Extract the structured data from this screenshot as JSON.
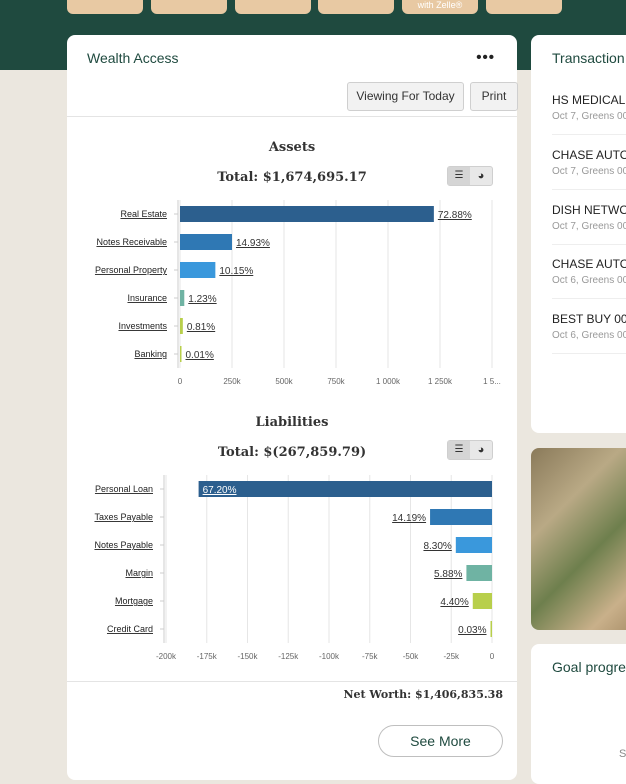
{
  "banner": {
    "quick_actions": [
      "",
      "",
      "",
      "",
      "with Zelle®",
      ""
    ]
  },
  "wealth": {
    "title": "Wealth Access",
    "more_label": "•••",
    "viewing_label": "Viewing For Today",
    "print_label": "Print",
    "assets": {
      "title": "Assets",
      "total": "Total: $1,674,695.17"
    },
    "liabilities": {
      "title": "Liabilities",
      "total": "Total: $(267,859.79)"
    },
    "toggle": {
      "bar_icon": "bar-chart-icon",
      "pie_icon": "pie-chart-icon",
      "bar_glyph": "☰",
      "pie_glyph": "◕"
    },
    "net_worth": "Net Worth: $1,406,835.38",
    "see_more": "See More"
  },
  "chart_data": [
    {
      "type": "bar",
      "orientation": "horizontal",
      "title": "Assets",
      "subtitle": "Total: $1,674,695.17",
      "categories": [
        "Real Estate",
        "Notes Receivable",
        "Personal Property",
        "Insurance",
        "Investments",
        "Banking"
      ],
      "percent_labels": [
        "72.88%",
        "14.93%",
        "10.15%",
        "1.23%",
        "0.81%",
        "0.01%"
      ],
      "values": [
        1220500,
        250000,
        170000,
        20600,
        13600,
        200
      ],
      "colors": [
        "#2c5f8e",
        "#2f78b4",
        "#3a98dc",
        "#6fb3a3",
        "#b8cf4b",
        "#b8cf4b"
      ],
      "xticks": [
        "0",
        "250k",
        "500k",
        "750k",
        "1 000k",
        "1 250k",
        "1 5..."
      ],
      "xlim": [
        0,
        1500000
      ],
      "grid": true
    },
    {
      "type": "bar",
      "orientation": "horizontal",
      "title": "Liabilities",
      "subtitle": "Total: $(267,859.79)",
      "categories": [
        "Personal Loan",
        "Taxes Payable",
        "Notes Payable",
        "Margin",
        "Mortgage",
        "Credit Card"
      ],
      "percent_labels": [
        "67.20%",
        "14.19%",
        "8.30%",
        "5.88%",
        "4.40%",
        "0.03%"
      ],
      "values": [
        -180000,
        -38000,
        -22200,
        -15700,
        -11800,
        -80
      ],
      "colors": [
        "#2c5f8e",
        "#2f78b4",
        "#3a98dc",
        "#6fb3a3",
        "#b8cf4b",
        "#b8cf4b"
      ],
      "xticks": [
        "-200k",
        "-175k",
        "-150k",
        "-125k",
        "-100k",
        "-75k",
        "-50k",
        "-25k",
        "0"
      ],
      "xlim": [
        -200000,
        0
      ],
      "grid": true
    }
  ],
  "transactions": {
    "title": "Transaction",
    "items": [
      {
        "name": "HS MEDICAL",
        "date": "Oct 7, Greens 00"
      },
      {
        "name": "CHASE AUTO",
        "date": "Oct 7, Greens 00"
      },
      {
        "name": "DISH NETWO",
        "date": "Oct 7, Greens 00"
      },
      {
        "name": "CHASE AUTO",
        "date": "Oct 6, Greens 00"
      },
      {
        "name": "BEST BUY 00",
        "date": "Oct 6, Greens 00"
      }
    ]
  },
  "goal": {
    "title": "Goal progre",
    "partial": "S"
  }
}
